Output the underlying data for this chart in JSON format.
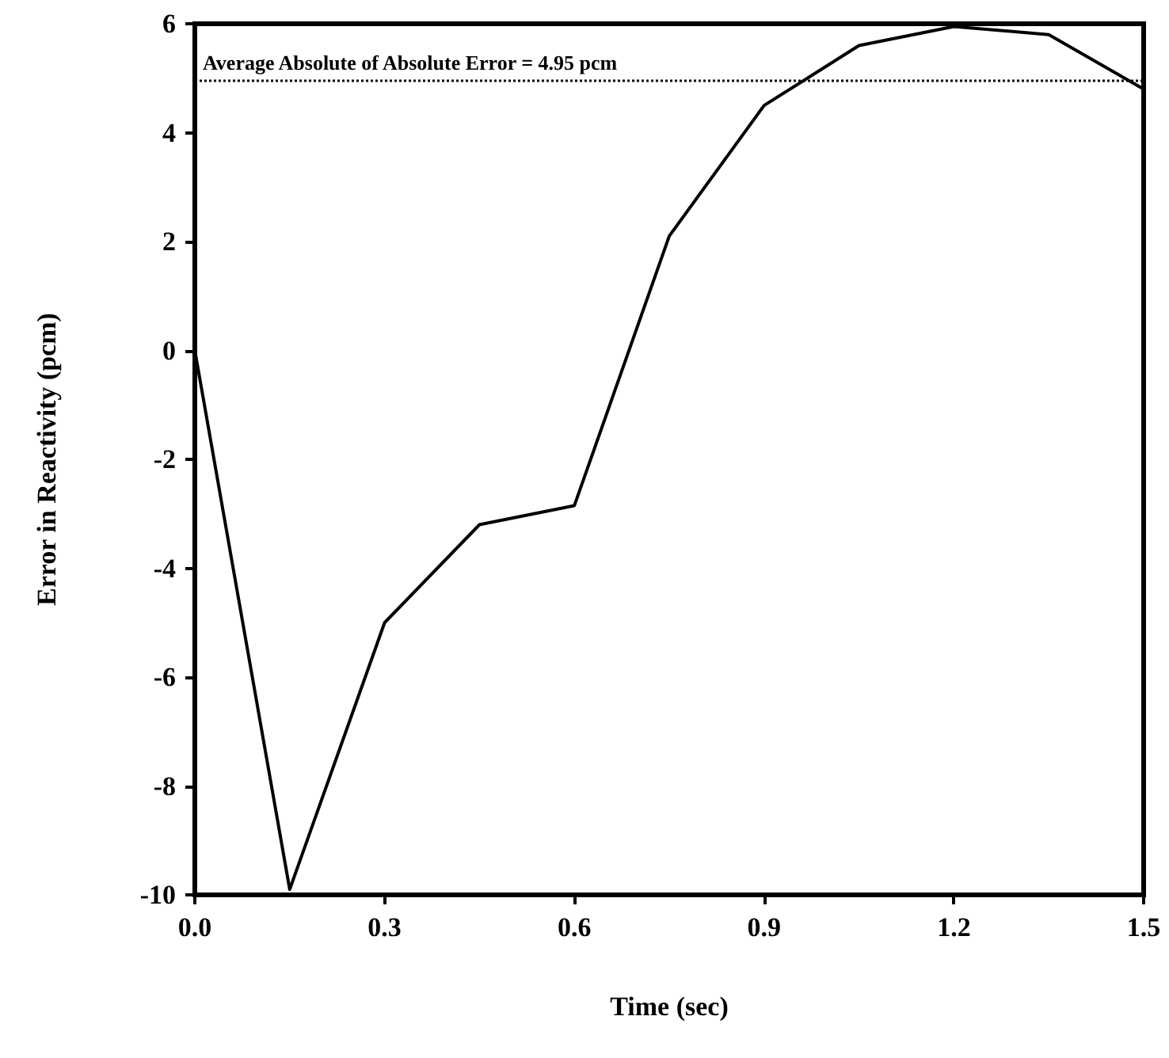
{
  "chart_data": {
    "type": "line",
    "xlabel": "Time (sec)",
    "ylabel": "Error in Reactivity (pcm)",
    "x": [
      0,
      0.15,
      0.3,
      0.45,
      0.6,
      0.75,
      0.9,
      1.05,
      1.2,
      1.35,
      1.5
    ],
    "series": [
      {
        "color": "#000000",
        "values": [
          0,
          -9.9,
          -5.0,
          -3.2,
          -2.85,
          2.1,
          4.5,
          5.6,
          5.95,
          5.8,
          4.8
        ]
      }
    ],
    "xlim": [
      0,
      1.5
    ],
    "xticks": [
      {
        "value": 0,
        "label": "0.0"
      },
      {
        "value": 0.3,
        "label": "0.3"
      },
      {
        "value": 0.6,
        "label": "0.6"
      },
      {
        "value": 0.9,
        "label": "0.9"
      },
      {
        "value": 1.2,
        "label": "1.2"
      },
      {
        "value": 1.5,
        "label": "1.5"
      }
    ],
    "ylim": [
      -10,
      6
    ],
    "yticks": [
      -10,
      -8,
      -6,
      -4,
      -2,
      0,
      2,
      4,
      6
    ],
    "ref_lines": [
      {
        "axis": "y",
        "value": 4.95,
        "label": "Average Absolute of Absolute Error = 4.95 pcm",
        "color": "#000000",
        "line_style": "dotted"
      }
    ],
    "marker": "none",
    "line_style": "solid"
  }
}
